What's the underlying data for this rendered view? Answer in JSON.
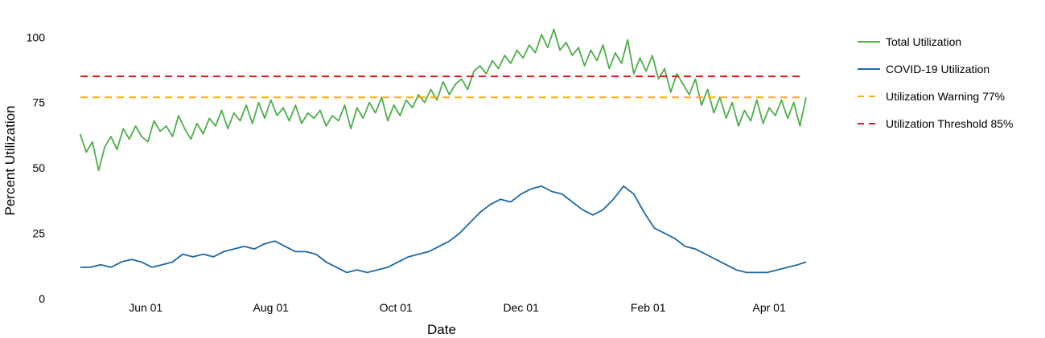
{
  "chart_data": {
    "type": "line",
    "xlabel": "Date",
    "ylabel": "Percent Utilization",
    "ylim": [
      0,
      105
    ],
    "xlim": [
      "2020-04-27",
      "2021-04-19"
    ],
    "y_ticks": [
      0,
      25,
      50,
      75,
      100
    ],
    "x_ticks": [
      {
        "date": "2020-06-01",
        "label": "Jun 01"
      },
      {
        "date": "2020-08-01",
        "label": "Aug 01"
      },
      {
        "date": "2020-10-01",
        "label": "Oct 01"
      },
      {
        "date": "2020-12-01",
        "label": "Dec 01"
      },
      {
        "date": "2021-02-01",
        "label": "Feb 01"
      },
      {
        "date": "2021-04-01",
        "label": "Apr 01"
      }
    ],
    "grid": false,
    "legend_position": "right",
    "series": [
      {
        "name": "Total Utilization",
        "color": "#4daf4a",
        "style": "solid",
        "x": [
          "2020-04-30",
          "2020-05-03",
          "2020-05-06",
          "2020-05-09",
          "2020-05-12",
          "2020-05-15",
          "2020-05-18",
          "2020-05-21",
          "2020-05-24",
          "2020-05-27",
          "2020-05-30",
          "2020-06-02",
          "2020-06-05",
          "2020-06-08",
          "2020-06-11",
          "2020-06-14",
          "2020-06-17",
          "2020-06-20",
          "2020-06-23",
          "2020-06-26",
          "2020-06-29",
          "2020-07-02",
          "2020-07-05",
          "2020-07-08",
          "2020-07-11",
          "2020-07-14",
          "2020-07-17",
          "2020-07-20",
          "2020-07-23",
          "2020-07-26",
          "2020-07-29",
          "2020-08-01",
          "2020-08-04",
          "2020-08-07",
          "2020-08-10",
          "2020-08-13",
          "2020-08-16",
          "2020-08-19",
          "2020-08-22",
          "2020-08-25",
          "2020-08-28",
          "2020-08-31",
          "2020-09-03",
          "2020-09-06",
          "2020-09-09",
          "2020-09-12",
          "2020-09-15",
          "2020-09-18",
          "2020-09-21",
          "2020-09-24",
          "2020-09-27",
          "2020-09-30",
          "2020-10-03",
          "2020-10-06",
          "2020-10-09",
          "2020-10-12",
          "2020-10-15",
          "2020-10-18",
          "2020-10-21",
          "2020-10-24",
          "2020-10-27",
          "2020-10-30",
          "2020-11-02",
          "2020-11-05",
          "2020-11-08",
          "2020-11-11",
          "2020-11-14",
          "2020-11-17",
          "2020-11-20",
          "2020-11-23",
          "2020-11-26",
          "2020-11-29",
          "2020-12-02",
          "2020-12-05",
          "2020-12-08",
          "2020-12-11",
          "2020-12-14",
          "2020-12-17",
          "2020-12-20",
          "2020-12-23",
          "2020-12-26",
          "2020-12-29",
          "2021-01-01",
          "2021-01-04",
          "2021-01-07",
          "2021-01-10",
          "2021-01-13",
          "2021-01-16",
          "2021-01-19",
          "2021-01-22",
          "2021-01-25",
          "2021-01-28",
          "2021-01-31",
          "2021-02-03",
          "2021-02-06",
          "2021-02-09",
          "2021-02-12",
          "2021-02-15",
          "2021-02-18",
          "2021-02-21",
          "2021-02-24",
          "2021-02-27",
          "2021-03-02",
          "2021-03-05",
          "2021-03-08",
          "2021-03-11",
          "2021-03-14",
          "2021-03-17",
          "2021-03-20",
          "2021-03-23",
          "2021-03-26",
          "2021-03-29",
          "2021-04-01",
          "2021-04-04",
          "2021-04-07",
          "2021-04-10",
          "2021-04-13",
          "2021-04-16",
          "2021-04-19"
        ],
        "values": [
          63,
          56,
          60,
          49,
          58,
          62,
          57,
          65,
          61,
          66,
          62,
          60,
          68,
          64,
          66,
          62,
          70,
          65,
          61,
          67,
          63,
          69,
          66,
          72,
          65,
          71,
          68,
          74,
          67,
          75,
          69,
          76,
          70,
          73,
          68,
          74,
          67,
          71,
          69,
          72,
          66,
          70,
          68,
          74,
          65,
          73,
          69,
          75,
          71,
          77,
          68,
          74,
          70,
          76,
          73,
          78,
          75,
          80,
          76,
          83,
          78,
          82,
          84,
          80,
          87,
          89,
          86,
          91,
          88,
          93,
          90,
          95,
          92,
          97,
          94,
          101,
          96,
          103,
          95,
          98,
          93,
          96,
          89,
          95,
          91,
          97,
          88,
          94,
          90,
          99,
          86,
          92,
          87,
          93,
          84,
          88,
          79,
          86,
          82,
          78,
          84,
          74,
          80,
          71,
          77,
          69,
          75,
          66,
          72,
          68,
          76,
          67,
          73,
          70,
          76,
          69,
          75,
          66,
          77
        ]
      },
      {
        "name": "COVID-19 Utilization",
        "color": "#1f6aa5",
        "style": "solid",
        "x": [
          "2020-04-30",
          "2020-05-05",
          "2020-05-10",
          "2020-05-15",
          "2020-05-20",
          "2020-05-25",
          "2020-05-30",
          "2020-06-04",
          "2020-06-09",
          "2020-06-14",
          "2020-06-19",
          "2020-06-24",
          "2020-06-29",
          "2020-07-04",
          "2020-07-09",
          "2020-07-14",
          "2020-07-19",
          "2020-07-24",
          "2020-07-29",
          "2020-08-03",
          "2020-08-08",
          "2020-08-13",
          "2020-08-18",
          "2020-08-23",
          "2020-08-28",
          "2020-09-02",
          "2020-09-07",
          "2020-09-12",
          "2020-09-17",
          "2020-09-22",
          "2020-09-27",
          "2020-10-02",
          "2020-10-07",
          "2020-10-12",
          "2020-10-17",
          "2020-10-22",
          "2020-10-27",
          "2020-11-01",
          "2020-11-06",
          "2020-11-11",
          "2020-11-16",
          "2020-11-21",
          "2020-11-26",
          "2020-12-01",
          "2020-12-06",
          "2020-12-11",
          "2020-12-16",
          "2020-12-21",
          "2020-12-26",
          "2020-12-31",
          "2021-01-05",
          "2021-01-10",
          "2021-01-15",
          "2021-01-20",
          "2021-01-25",
          "2021-01-30",
          "2021-02-04",
          "2021-02-09",
          "2021-02-14",
          "2021-02-19",
          "2021-02-24",
          "2021-03-01",
          "2021-03-06",
          "2021-03-11",
          "2021-03-16",
          "2021-03-21",
          "2021-03-26",
          "2021-03-31",
          "2021-04-05",
          "2021-04-10",
          "2021-04-15",
          "2021-04-19"
        ],
        "values": [
          12,
          12,
          13,
          12,
          14,
          15,
          14,
          12,
          13,
          14,
          17,
          16,
          17,
          16,
          18,
          19,
          20,
          19,
          21,
          22,
          20,
          18,
          18,
          17,
          14,
          12,
          10,
          11,
          10,
          11,
          12,
          14,
          16,
          17,
          18,
          20,
          22,
          25,
          29,
          33,
          36,
          38,
          37,
          40,
          42,
          43,
          41,
          40,
          37,
          34,
          32,
          34,
          38,
          43,
          40,
          33,
          27,
          25,
          23,
          20,
          19,
          17,
          15,
          13,
          11,
          10,
          10,
          10,
          11,
          12,
          13,
          14
        ]
      },
      {
        "name": "Utilization Warning 77%",
        "color": "#ffb000",
        "style": "dashed",
        "value": 77
      },
      {
        "name": "Utilization Threshold 85%",
        "color": "#e41a1c",
        "style": "dashed",
        "value": 85
      }
    ]
  }
}
